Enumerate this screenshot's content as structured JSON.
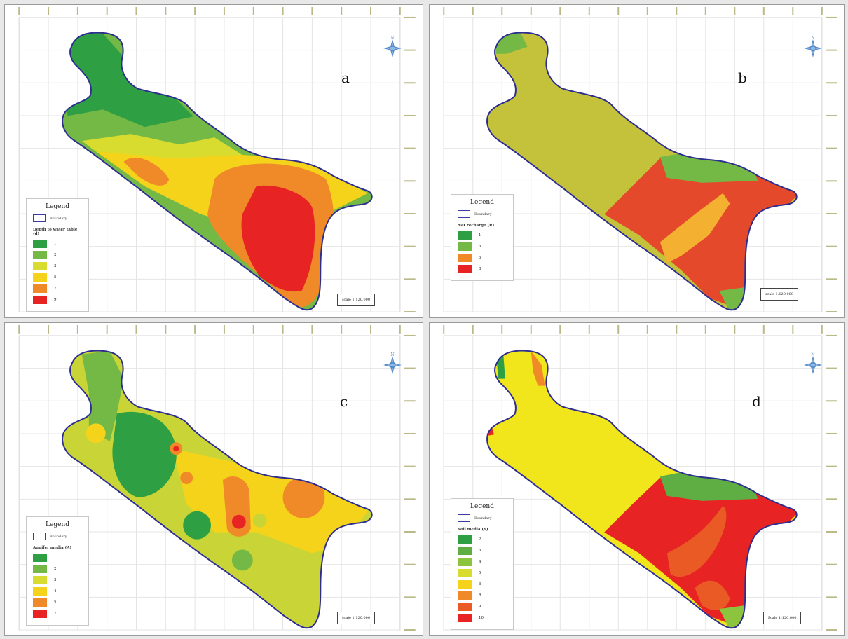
{
  "colors": {
    "boundary": "#2d2e8f",
    "dark_green": "#2ea043",
    "mid_green": "#74b846",
    "light_green": "#b9d23c",
    "lime": "#d8dc2e",
    "yellow": "#f4d31a",
    "orange": "#f08a28",
    "red_orange": "#ea5a24",
    "red": "#e82323"
  },
  "panels": [
    {
      "letter": "a",
      "legend": {
        "title": "Legend",
        "boundary_label": "Boundary",
        "variable_label": "Depth to water table (d)",
        "classes": [
          {
            "label": "1",
            "color": "#2ea043"
          },
          {
            "label": "2",
            "color": "#74b846"
          },
          {
            "label": "3",
            "color": "#d8dc2e"
          },
          {
            "label": "5",
            "color": "#f4d31a"
          },
          {
            "label": "7",
            "color": "#f08a28"
          },
          {
            "label": "9",
            "color": "#e82323"
          }
        ]
      },
      "scale": "scale 1:120,000"
    },
    {
      "letter": "b",
      "legend": {
        "title": "Legend",
        "boundary_label": "Boundary",
        "variable_label": "Net recharge (R)",
        "classes": [
          {
            "label": "1",
            "color": "#2ea043"
          },
          {
            "label": "3",
            "color": "#74b846"
          },
          {
            "label": "5",
            "color": "#f08a28"
          },
          {
            "label": "8",
            "color": "#e82323"
          }
        ]
      },
      "scale": "scale 1:120,000"
    },
    {
      "letter": "c",
      "legend": {
        "title": "Legend",
        "boundary_label": "Boundary",
        "variable_label": "Aquifer media (A)",
        "classes": [
          {
            "label": "1",
            "color": "#2ea043"
          },
          {
            "label": "2",
            "color": "#74b846"
          },
          {
            "label": "3",
            "color": "#d8dc2e"
          },
          {
            "label": "4",
            "color": "#f4d31a"
          },
          {
            "label": "5",
            "color": "#f08a28"
          },
          {
            "label": "7",
            "color": "#e82323"
          }
        ]
      },
      "scale": "scale 1:120,000"
    },
    {
      "letter": "d",
      "legend": {
        "title": "Legend",
        "boundary_label": "Boundary",
        "variable_label": "Soil media (S)",
        "classes": [
          {
            "label": "2",
            "color": "#2ea043"
          },
          {
            "label": "3",
            "color": "#5fae44"
          },
          {
            "label": "4",
            "color": "#8cc43e"
          },
          {
            "label": "5",
            "color": "#d8dc2e"
          },
          {
            "label": "6",
            "color": "#f4d31a"
          },
          {
            "label": "8",
            "color": "#f08a28"
          },
          {
            "label": "9",
            "color": "#ea5a24"
          },
          {
            "label": "10",
            "color": "#e82323"
          }
        ]
      },
      "scale": "Scale 1:120,000"
    }
  ]
}
